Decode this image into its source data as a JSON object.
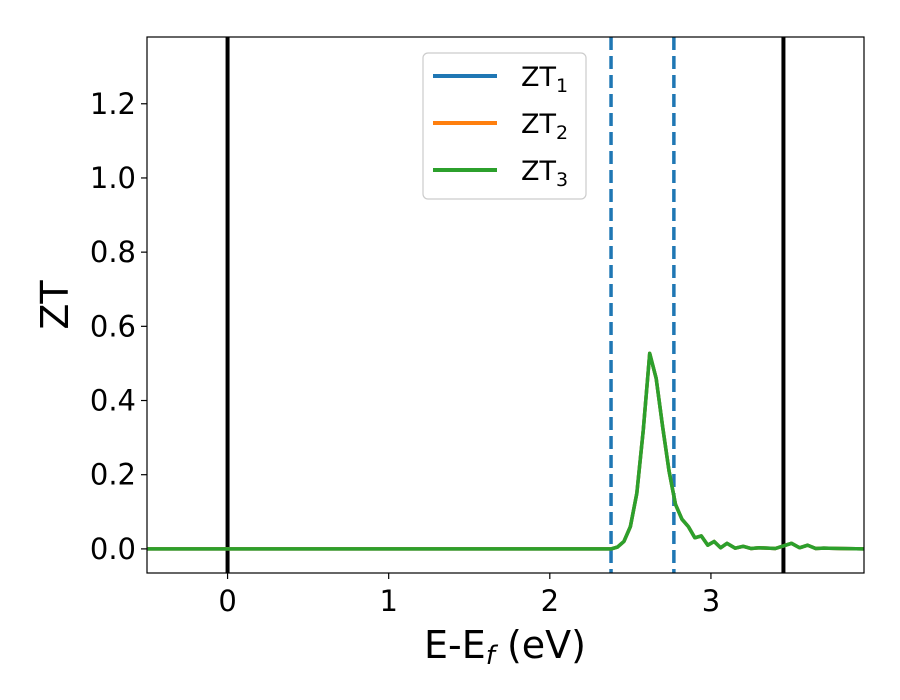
{
  "chart_data": {
    "type": "line",
    "xlabel": {
      "main": "E-E",
      "sub": "f",
      "suffix": " (eV)"
    },
    "ylabel": "ZT",
    "xlim": [
      -0.5,
      3.95
    ],
    "ylim": [
      -0.065,
      1.38
    ],
    "x_ticks": [
      0,
      1,
      2,
      3
    ],
    "x_tick_labels": [
      "0",
      "1",
      "2",
      "3"
    ],
    "y_ticks": [
      0.0,
      0.2,
      0.4,
      0.6,
      0.8,
      1.0,
      1.2
    ],
    "y_tick_labels": [
      "0.0",
      "0.2",
      "0.4",
      "0.6",
      "0.8",
      "1.0",
      "1.2"
    ],
    "grid": false,
    "legend_position": "top-center",
    "vertical_lines": [
      {
        "x": 0.0,
        "style": "solid",
        "color": "#000000"
      },
      {
        "x": 3.45,
        "style": "solid",
        "color": "#000000"
      },
      {
        "x": 2.38,
        "style": "dashed",
        "color": "#1f77b4"
      },
      {
        "x": 2.77,
        "style": "dashed",
        "color": "#1f77b4"
      }
    ],
    "series": [
      {
        "name": "ZT",
        "sub": "1",
        "color": "#1f77b4",
        "x": [
          -0.5,
          2.0,
          2.38,
          2.42,
          2.46,
          2.5,
          2.54,
          2.58,
          2.62,
          2.66,
          2.7,
          2.74,
          2.78,
          2.82,
          2.86,
          2.9,
          2.94,
          2.98,
          3.02,
          3.06,
          3.1,
          3.15,
          3.2,
          3.25,
          3.3,
          3.4,
          3.5,
          3.55,
          3.6,
          3.65,
          3.7,
          3.8,
          3.95
        ],
        "y": [
          0.0,
          0.0,
          0.0,
          0.005,
          0.02,
          0.06,
          0.15,
          0.32,
          0.527,
          0.46,
          0.33,
          0.21,
          0.12,
          0.08,
          0.06,
          0.03,
          0.035,
          0.01,
          0.02,
          0.003,
          0.015,
          0.002,
          0.007,
          0.001,
          0.003,
          0.001,
          0.015,
          0.003,
          0.01,
          0.001,
          0.002,
          0.001,
          0.0
        ]
      },
      {
        "name": "ZT",
        "sub": "2",
        "color": "#ff7f0e",
        "x": [
          -0.5,
          2.0,
          2.38,
          2.42,
          2.46,
          2.5,
          2.54,
          2.58,
          2.62,
          2.66,
          2.7,
          2.74,
          2.78,
          2.82,
          2.86,
          2.9,
          2.94,
          2.98,
          3.02,
          3.06,
          3.1,
          3.15,
          3.2,
          3.25,
          3.3,
          3.4,
          3.5,
          3.55,
          3.6,
          3.65,
          3.7,
          3.8,
          3.95
        ],
        "y": [
          0.0,
          0.0,
          0.0,
          0.005,
          0.02,
          0.06,
          0.15,
          0.32,
          0.527,
          0.46,
          0.33,
          0.21,
          0.12,
          0.08,
          0.06,
          0.03,
          0.035,
          0.01,
          0.02,
          0.003,
          0.015,
          0.002,
          0.007,
          0.001,
          0.003,
          0.001,
          0.015,
          0.003,
          0.01,
          0.001,
          0.002,
          0.001,
          0.0
        ]
      },
      {
        "name": "ZT",
        "sub": "3",
        "color": "#2ca02c",
        "x": [
          -0.5,
          2.0,
          2.38,
          2.42,
          2.46,
          2.5,
          2.54,
          2.58,
          2.62,
          2.66,
          2.7,
          2.74,
          2.78,
          2.82,
          2.86,
          2.9,
          2.94,
          2.98,
          3.02,
          3.06,
          3.1,
          3.15,
          3.2,
          3.25,
          3.3,
          3.4,
          3.5,
          3.55,
          3.6,
          3.65,
          3.7,
          3.8,
          3.95
        ],
        "y": [
          0.0,
          0.0,
          0.0,
          0.005,
          0.02,
          0.06,
          0.15,
          0.32,
          0.527,
          0.46,
          0.33,
          0.21,
          0.12,
          0.08,
          0.06,
          0.03,
          0.035,
          0.01,
          0.02,
          0.003,
          0.015,
          0.002,
          0.007,
          0.001,
          0.003,
          0.001,
          0.015,
          0.003,
          0.01,
          0.001,
          0.002,
          0.001,
          0.0
        ]
      }
    ]
  }
}
